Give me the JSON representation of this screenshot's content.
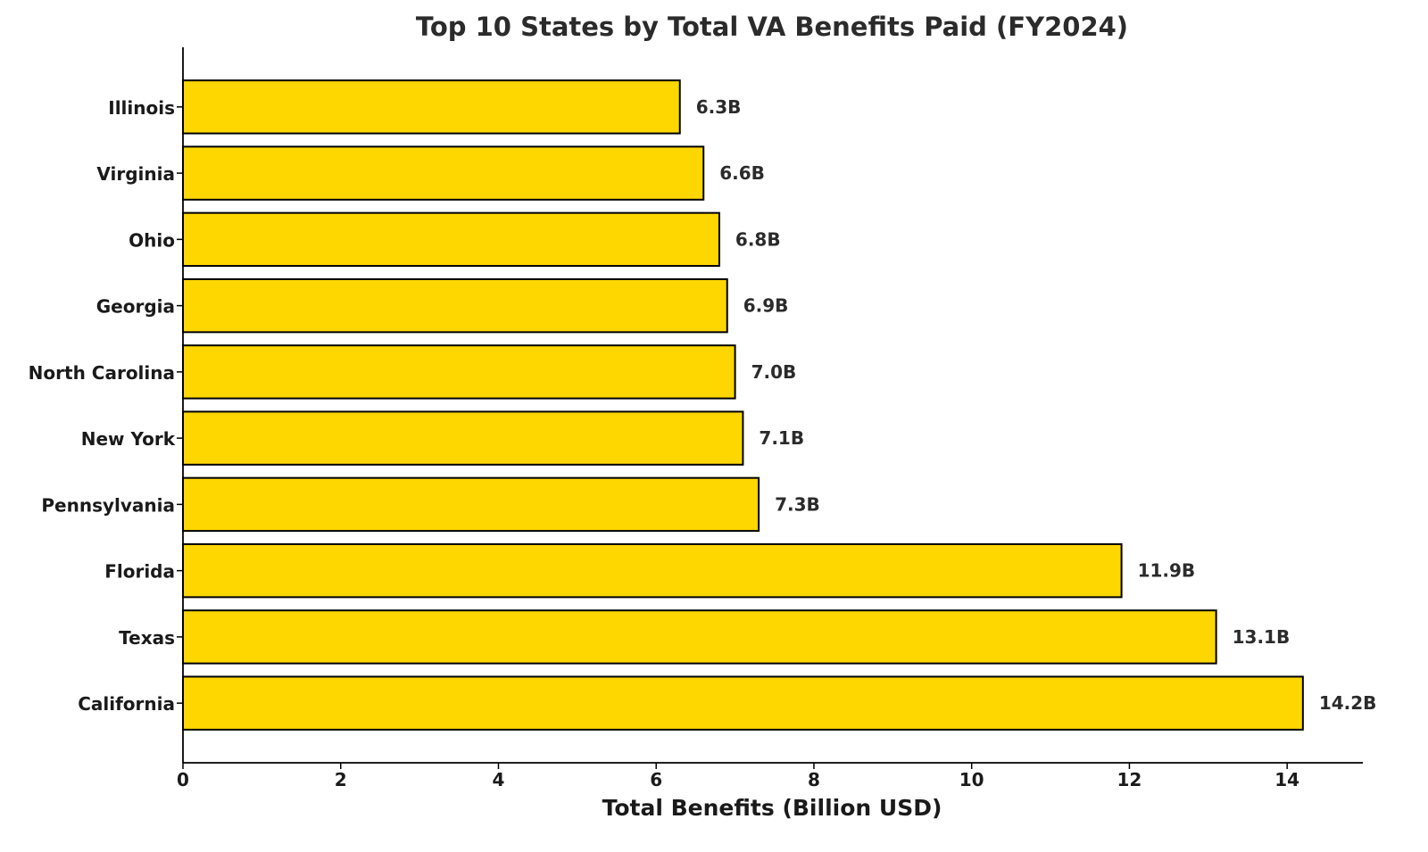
{
  "chart_data": {
    "type": "bar",
    "orientation": "horizontal",
    "title": "Top 10 States by Total VA Benefits Paid (FY2024)",
    "xlabel": "Total Benefits (Billion USD)",
    "ylabel": "",
    "categories": [
      "California",
      "Texas",
      "Florida",
      "Pennsylvania",
      "New York",
      "North Carolina",
      "Georgia",
      "Ohio",
      "Virginia",
      "Illinois"
    ],
    "values": [
      14.2,
      13.1,
      11.9,
      7.3,
      7.1,
      7.0,
      6.9,
      6.8,
      6.6,
      6.3
    ],
    "data_labels": [
      "14.2B",
      "13.1B",
      "11.9B",
      "7.3B",
      "7.1B",
      "7.0B",
      "6.9B",
      "6.8B",
      "6.6B",
      "6.3B"
    ],
    "xticks": [
      "0",
      "2",
      "4",
      "6",
      "8",
      "10",
      "12",
      "14"
    ],
    "xlim": [
      0,
      14.96
    ],
    "grid": false,
    "bar_color": "#FFD700",
    "edge_color": "#000000"
  }
}
